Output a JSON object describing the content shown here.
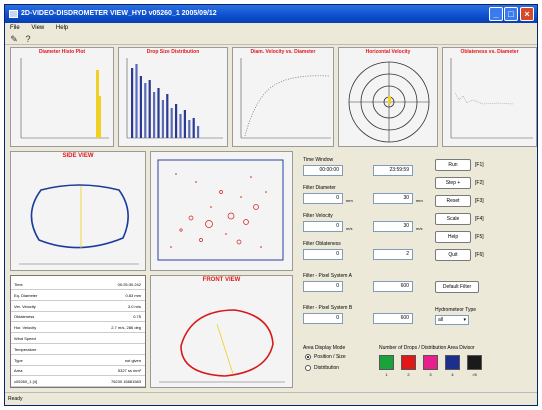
{
  "window": {
    "title": "2D-VIDEO-DISDROMETER VIEW_HYD v05260_1 2005/09/12"
  },
  "menu": [
    "File",
    "View",
    "Help"
  ],
  "toolbar_icons": [
    "open-icon",
    "info-icon"
  ],
  "panels": {
    "p1": "Diameter Histo Plot",
    "p2": "Drop Size Distribution",
    "p3": "Diam. Velocity vs. Diameter",
    "p4": "Horizontal Velocity",
    "p5": "Oblateness vs. Diameter",
    "side_view": "SIDE VIEW",
    "front_view": "FRONT VIEW"
  },
  "controls": {
    "time_window": {
      "label": "Time Window",
      "from": "00:00:00",
      "to": "23:59:59"
    },
    "filter_diameter": {
      "label": "Filter Diameter",
      "min": "0",
      "max": "30",
      "unit": "mm"
    },
    "filter_velocity": {
      "label": "Filter Velocity",
      "min": "0",
      "max": "30",
      "unit": "m/s"
    },
    "filter_oblateness": {
      "label": "Filter Oblateness",
      "min": "0",
      "max": "2"
    },
    "filter_pixel_a": {
      "label": "Filter - Pixel System A",
      "min": "0",
      "max": "600"
    },
    "filter_pixel_b": {
      "label": "Filter - Pixel System B",
      "min": "0",
      "max": "600"
    },
    "hydrometeor": {
      "label": "Hydrometeor Type",
      "value": "all"
    },
    "area_display": {
      "label": "Area Display Mode",
      "opt1": "Position / Size",
      "opt2": "Distribution"
    },
    "drops_label": "Number of Drops / Distribution Area Divisor",
    "default_filter": "Default Filter"
  },
  "buttons": [
    {
      "label": "Run",
      "key": "[F1]"
    },
    {
      "label": "Step +",
      "key": "[F2]"
    },
    {
      "label": "Reset",
      "key": "[F3]"
    },
    {
      "label": "Scale",
      "key": "[F4]"
    },
    {
      "label": "Help",
      "key": "[F5]"
    },
    {
      "label": "Quit",
      "key": "[F6]"
    }
  ],
  "swatches": [
    {
      "num": "1",
      "color": "#1aa33a"
    },
    {
      "num": "2",
      "color": "#e01818"
    },
    {
      "num": "3",
      "color": "#e8208e"
    },
    {
      "num": "4",
      "color": "#1c2f8f"
    },
    {
      "num": ">5",
      "color": "#1a1a1a"
    }
  ],
  "info_rows": [
    {
      "k": "Time",
      "v": "00:25:30.242"
    },
    {
      "k": "Eq. Diameter",
      "v": "0.83 mm"
    },
    {
      "k": "Ver. Velocity",
      "v": "3.0 m/s"
    },
    {
      "k": "Oblateness",
      "v": "0.75"
    },
    {
      "k": "Hor. Velocity",
      "v": "2.7 m/s, 286 deg"
    },
    {
      "k": "Wind Speed",
      "v": ""
    },
    {
      "k": "Temperature",
      "v": ""
    },
    {
      "k": "Type",
      "v": "not given"
    },
    {
      "k": "Area",
      "v": "5327 ss mm²"
    },
    {
      "k": "v05260_1 [4]",
      "v": "76230 15881583"
    }
  ],
  "status": "Ready",
  "colors": {
    "title_red": "#e01818",
    "side_outline": "#1a3a9c",
    "front_outline": "#d81818",
    "drop_line": "#f0d020"
  }
}
